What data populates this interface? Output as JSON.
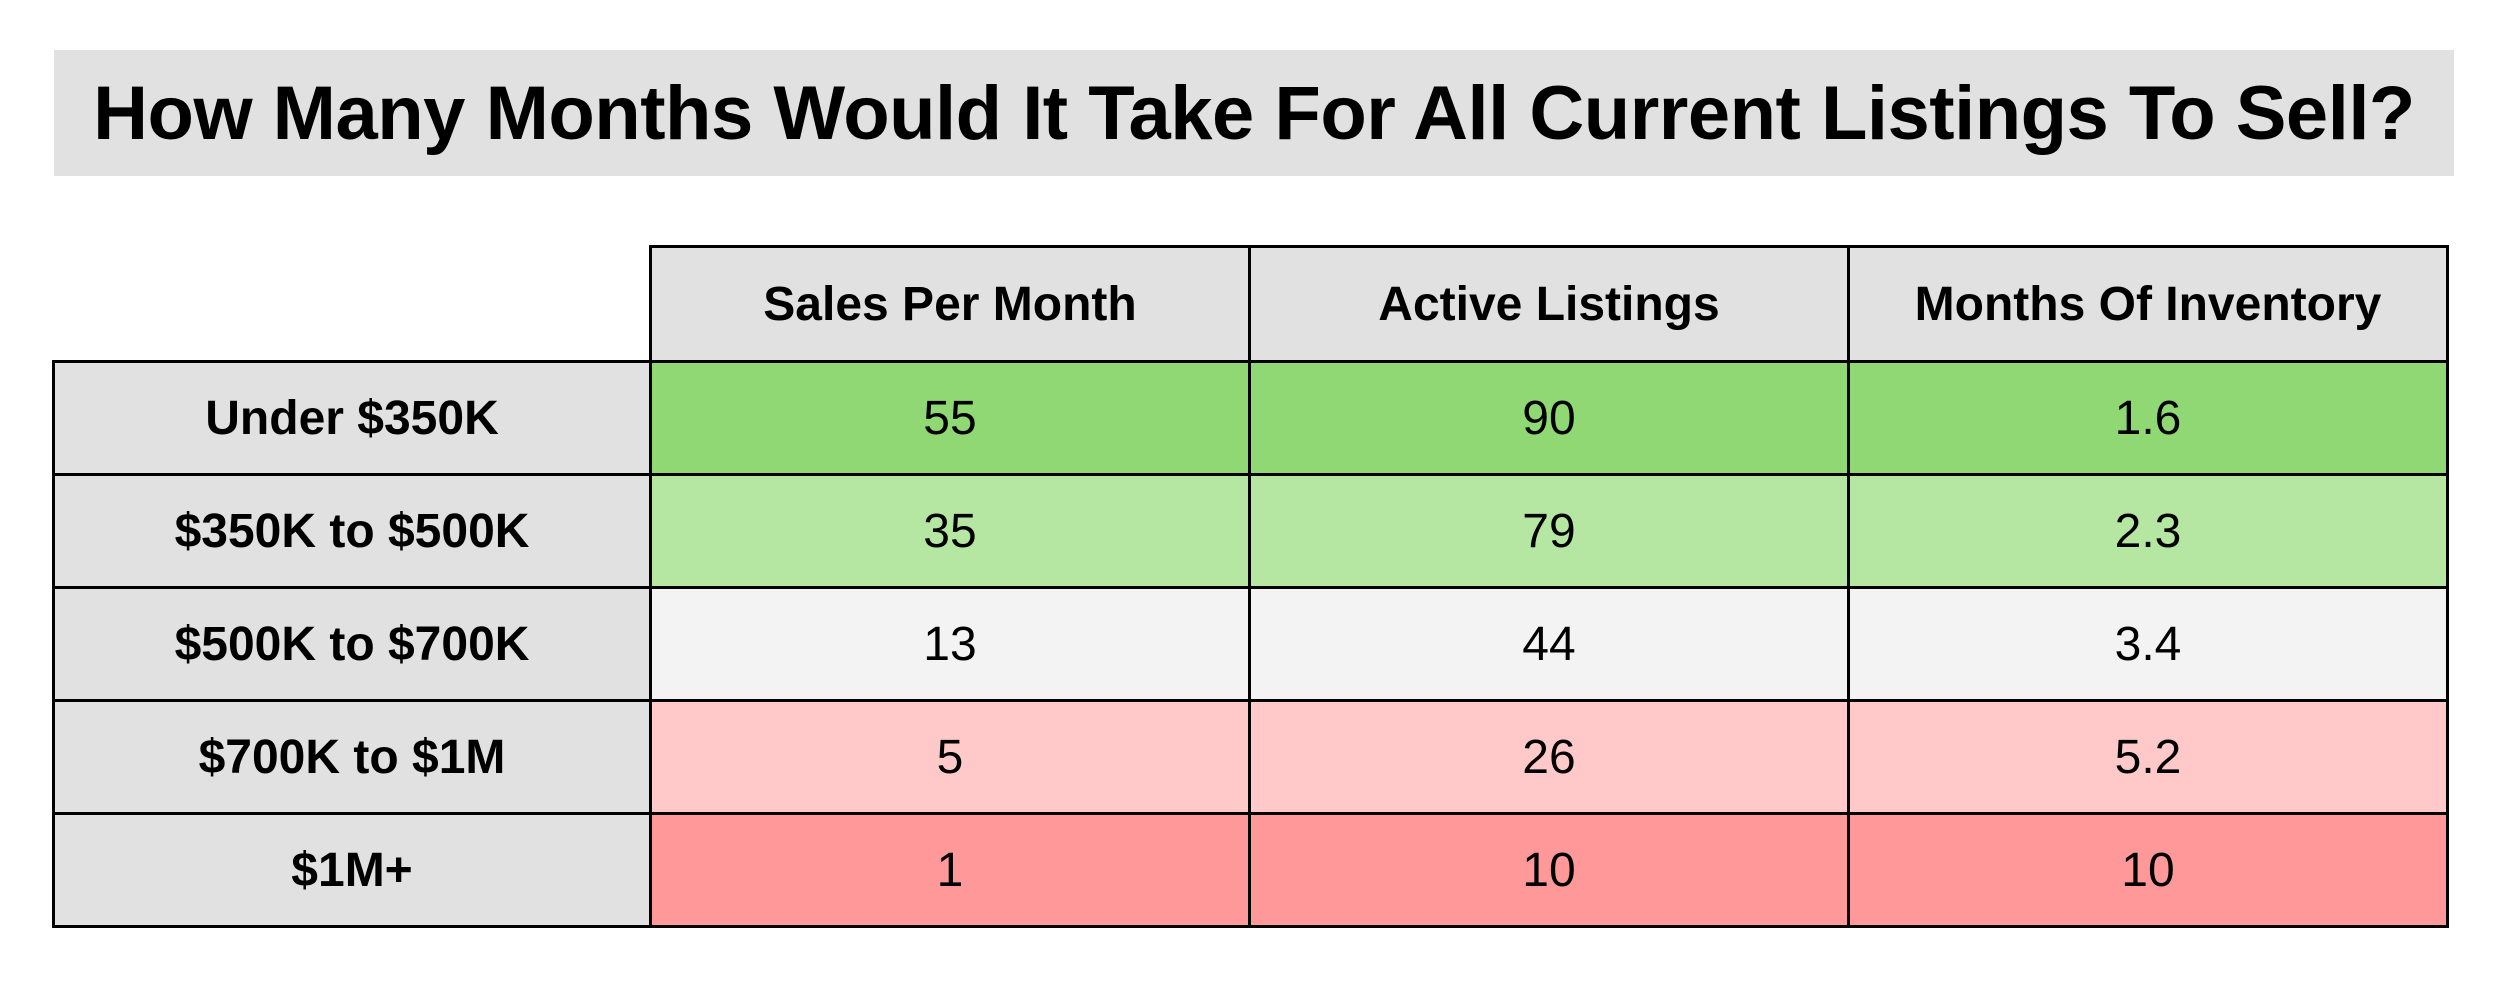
{
  "title": "How Many Months Would It Take For All Current Listings To Sell?",
  "chart_data": {
    "type": "table",
    "title": "How Many Months Would It Take For All Current Listings To Sell?",
    "columns": [
      "Sales Per Month",
      "Active Listings",
      "Months Of Inventory"
    ],
    "rows": [
      {
        "label": "Under $350K",
        "values": [
          "55",
          "90",
          "1.6"
        ],
        "color": "#8fd873"
      },
      {
        "label": "$350K to $500K",
        "values": [
          "35",
          "79",
          "2.3"
        ],
        "color": "#b5e6a2"
      },
      {
        "label": "$500K to $700K",
        "values": [
          "13",
          "44",
          "3.4"
        ],
        "color": "#f3f3f3"
      },
      {
        "label": "$700K to $1M",
        "values": [
          "5",
          "26",
          "5.2"
        ],
        "color": "#ffc9c9"
      },
      {
        "label": "$1M+",
        "values": [
          "1",
          "10",
          "10"
        ],
        "color": "#ff9999"
      }
    ],
    "header_color": "#e1e1e1"
  }
}
